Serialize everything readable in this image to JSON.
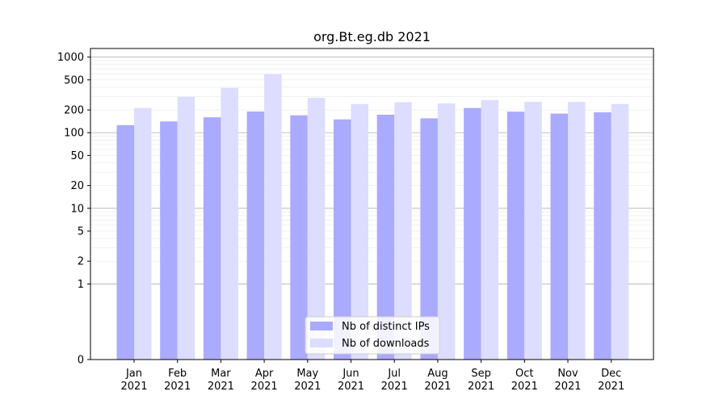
{
  "chart_data": {
    "type": "bar",
    "title": "org.Bt.eg.db 2021",
    "xlabel": "",
    "ylabel": "",
    "yscale": "symlog",
    "ylim": [
      0,
      1300
    ],
    "grid": true,
    "legend_position": "bottom-center",
    "categories": [
      [
        "Jan",
        "2021"
      ],
      [
        "Feb",
        "2021"
      ],
      [
        "Mar",
        "2021"
      ],
      [
        "Apr",
        "2021"
      ],
      [
        "May",
        "2021"
      ],
      [
        "Jun",
        "2021"
      ],
      [
        "Jul",
        "2021"
      ],
      [
        "Aug",
        "2021"
      ],
      [
        "Sep",
        "2021"
      ],
      [
        "Oct",
        "2021"
      ],
      [
        "Nov",
        "2021"
      ],
      [
        "Dec",
        "2021"
      ]
    ],
    "yticks": [
      0,
      1,
      2,
      5,
      10,
      20,
      50,
      100,
      200,
      500,
      1000
    ],
    "ytick_labels": [
      "0",
      "1",
      "2",
      "5",
      "10",
      "20",
      "50",
      "100",
      "200",
      "500",
      "1000"
    ],
    "series": [
      {
        "name": "Nb of distinct IPs",
        "color": "#aaaaff",
        "values": [
          126,
          141,
          160,
          191,
          170,
          150,
          173,
          155,
          212,
          190,
          179,
          186
        ]
      },
      {
        "name": "Nb of downloads",
        "color": "#ddddff",
        "values": [
          212,
          298,
          392,
          594,
          290,
          240,
          253,
          244,
          270,
          256,
          255,
          240
        ]
      }
    ]
  }
}
